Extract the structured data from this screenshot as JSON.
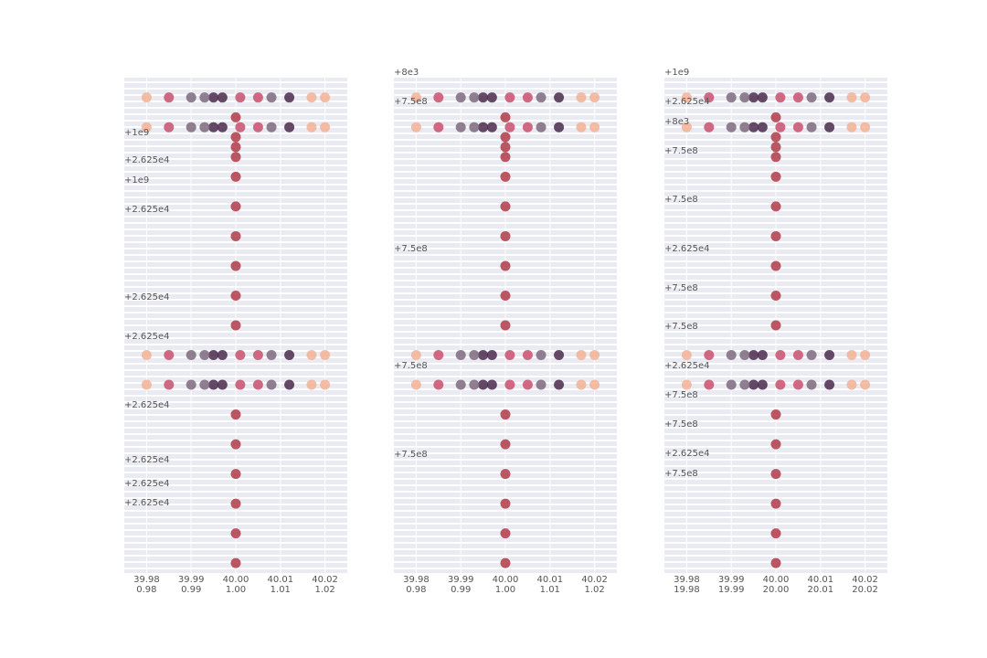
{
  "chart_data": [
    {
      "type": "scatter",
      "xlim": [
        39.975,
        40.025
      ],
      "xticks": [
        39.98,
        39.99,
        {
          "value": 40,
          "label": "40.00"
        },
        40.01,
        40.02
      ],
      "x2lim": [
        0.975,
        1.025
      ],
      "x2ticks": [
        0.98,
        0.99,
        {
          "value": 1,
          "label": "1.00"
        },
        1.01,
        1.02
      ],
      "ylim": [
        0,
        100
      ],
      "grid": true,
      "annotations": [
        "+1e9",
        "+2.625e4",
        "+1e9",
        "+2.625e4",
        "+2.625e4",
        "+2.625e4",
        "+2.625e4",
        "+2.625e4",
        "+2.625e4",
        "+2.625e4"
      ],
      "series": [
        {
          "color": "#4b2c4e",
          "x": [
            39.995,
            39.997,
            40.012,
            39.995,
            39.997,
            40.012,
            39.995,
            39.997,
            40.012,
            39.995,
            39.997,
            40.012
          ],
          "values": [
            96,
            96,
            96,
            90,
            90,
            90,
            44,
            44,
            44,
            38,
            38,
            38
          ]
        },
        {
          "color": "#c8506e",
          "x": [
            39.985,
            40.001,
            40.005,
            39.985,
            40.001,
            40.005,
            39.985,
            40.001,
            40.005,
            39.985,
            40.001,
            40.005
          ],
          "values": [
            96,
            96,
            96,
            90,
            90,
            90,
            44,
            44,
            44,
            38,
            38,
            38
          ]
        },
        {
          "color": "#f2b295",
          "x": [
            39.98,
            40.017,
            40.02,
            39.98,
            40.017,
            40.02,
            39.98,
            40.017,
            40.02,
            39.98,
            40.017,
            40.02
          ],
          "values": [
            96,
            96,
            96,
            90,
            90,
            90,
            44,
            44,
            44,
            38,
            38,
            38
          ]
        },
        {
          "color": "#7d6a7e",
          "x": [
            39.99,
            39.993,
            40.008,
            39.99,
            39.993,
            40.008,
            39.99,
            39.993,
            40.008,
            39.99,
            39.993,
            40.008
          ],
          "values": [
            96,
            96,
            96,
            90,
            90,
            90,
            44,
            44,
            44,
            38,
            38,
            38
          ]
        },
        {
          "color": "#b03a48",
          "x": [
            40,
            40,
            40,
            40,
            40,
            40,
            40,
            40,
            40,
            40,
            40,
            40,
            40,
            40,
            40,
            40
          ],
          "values": [
            2,
            8,
            14,
            20,
            26,
            32,
            50,
            56,
            62,
            68,
            74,
            80,
            84,
            86,
            88,
            92
          ]
        }
      ]
    },
    {
      "type": "scatter",
      "xlim": [
        39.975,
        40.025
      ],
      "xticks": [
        39.98,
        39.99,
        {
          "value": 40,
          "label": "40.00"
        },
        40.01,
        40.02
      ],
      "x2lim": [
        0.975,
        1.025
      ],
      "x2ticks": [
        0.98,
        0.99,
        {
          "value": 1,
          "label": "1.00"
        },
        1.01,
        1.02
      ],
      "ylim": [
        0,
        100
      ],
      "grid": true,
      "annotations": [
        "+8e3",
        "+7.5e8",
        "+7.5e8",
        "+7.5e8",
        "+7.5e8"
      ],
      "series": [
        {
          "color": "#4b2c4e",
          "x": [
            39.995,
            39.997,
            40.012,
            39.995,
            39.997,
            40.012,
            39.995,
            39.997,
            40.012,
            39.995,
            39.997,
            40.012
          ],
          "values": [
            96,
            96,
            96,
            90,
            90,
            90,
            44,
            44,
            44,
            38,
            38,
            38
          ]
        },
        {
          "color": "#c8506e",
          "x": [
            39.985,
            40.001,
            40.005,
            39.985,
            40.001,
            40.005,
            39.985,
            40.001,
            40.005,
            39.985,
            40.001,
            40.005
          ],
          "values": [
            96,
            96,
            96,
            90,
            90,
            90,
            44,
            44,
            44,
            38,
            38,
            38
          ]
        },
        {
          "color": "#f2b295",
          "x": [
            39.98,
            40.017,
            40.02,
            39.98,
            40.017,
            40.02,
            39.98,
            40.017,
            40.02,
            39.98,
            40.017,
            40.02
          ],
          "values": [
            96,
            96,
            96,
            90,
            90,
            90,
            44,
            44,
            44,
            38,
            38,
            38
          ]
        },
        {
          "color": "#7d6a7e",
          "x": [
            39.99,
            39.993,
            40.008,
            39.99,
            39.993,
            40.008,
            39.99,
            39.993,
            40.008,
            39.99,
            39.993,
            40.008
          ],
          "values": [
            96,
            96,
            96,
            90,
            90,
            90,
            44,
            44,
            44,
            38,
            38,
            38
          ]
        },
        {
          "color": "#b03a48",
          "x": [
            40,
            40,
            40,
            40,
            40,
            40,
            40,
            40,
            40,
            40,
            40,
            40,
            40,
            40,
            40,
            40
          ],
          "values": [
            2,
            8,
            14,
            20,
            26,
            32,
            50,
            56,
            62,
            68,
            74,
            80,
            84,
            86,
            88,
            92
          ]
        }
      ]
    },
    {
      "type": "scatter",
      "xlim": [
        39.975,
        40.025
      ],
      "xticks": [
        39.98,
        39.99,
        {
          "value": 40,
          "label": "40.00"
        },
        40.01,
        40.02
      ],
      "x2lim": [
        19.975,
        20.025
      ],
      "x2ticks": [
        19.98,
        19.99,
        {
          "value": 20,
          "label": "20.00"
        },
        20.01,
        20.02
      ],
      "ylim": [
        0,
        100
      ],
      "grid": true,
      "annotations": [
        "+1e9",
        "+2.625e4",
        "+8e3",
        "+7.5e8",
        "+7.5e8",
        "+2.625e4",
        "+7.5e8",
        "+7.5e8",
        "+2.625e4",
        "+7.5e8",
        "+7.5e8",
        "+2.625e4",
        "+7.5e8"
      ],
      "series": [
        {
          "color": "#4b2c4e",
          "x": [
            39.995,
            39.997,
            40.012,
            39.995,
            39.997,
            40.012,
            39.995,
            39.997,
            40.012,
            39.995,
            39.997,
            40.012
          ],
          "values": [
            96,
            96,
            96,
            90,
            90,
            90,
            44,
            44,
            44,
            38,
            38,
            38
          ]
        },
        {
          "color": "#c8506e",
          "x": [
            39.985,
            40.001,
            40.005,
            39.985,
            40.001,
            40.005,
            39.985,
            40.001,
            40.005,
            39.985,
            40.001,
            40.005
          ],
          "values": [
            96,
            96,
            96,
            90,
            90,
            90,
            44,
            44,
            44,
            38,
            38,
            38
          ]
        },
        {
          "color": "#f2b295",
          "x": [
            39.98,
            40.017,
            40.02,
            39.98,
            40.017,
            40.02,
            39.98,
            40.017,
            40.02,
            39.98,
            40.017,
            40.02
          ],
          "values": [
            96,
            96,
            96,
            90,
            90,
            90,
            44,
            44,
            44,
            38,
            38,
            38
          ]
        },
        {
          "color": "#7d6a7e",
          "x": [
            39.99,
            39.993,
            40.008,
            39.99,
            39.993,
            40.008,
            39.99,
            39.993,
            40.008,
            39.99,
            39.993,
            40.008
          ],
          "values": [
            96,
            96,
            96,
            90,
            90,
            90,
            44,
            44,
            44,
            38,
            38,
            38
          ]
        },
        {
          "color": "#b03a48",
          "x": [
            40,
            40,
            40,
            40,
            40,
            40,
            40,
            40,
            40,
            40,
            40,
            40,
            40,
            40,
            40,
            40
          ],
          "values": [
            2,
            8,
            14,
            20,
            26,
            32,
            50,
            56,
            62,
            68,
            74,
            80,
            84,
            86,
            88,
            92
          ]
        }
      ]
    }
  ]
}
